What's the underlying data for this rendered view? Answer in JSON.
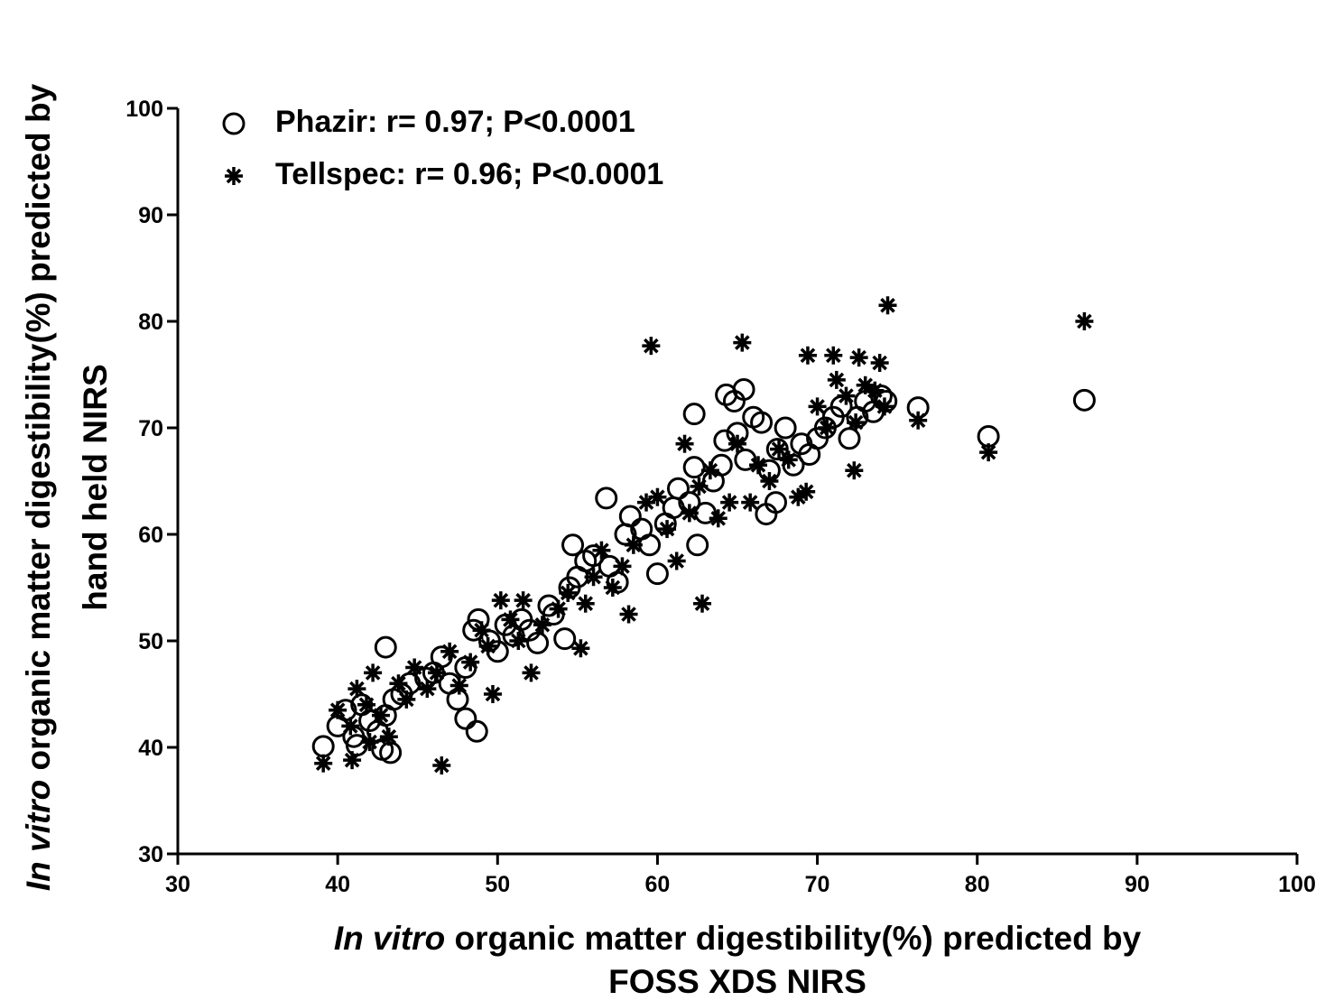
{
  "chart_data": {
    "type": "scatter",
    "x_label": {
      "italic": "In vitro",
      "rest": "organic matter digestibility(%) predicted by",
      "line2": "FOSS XDS NIRS"
    },
    "y_label": {
      "italic": "In vitro",
      "rest": "organic matter digestibility(%) predicted by",
      "line2": "hand held NIRS"
    },
    "xlim": [
      30,
      100
    ],
    "ylim": [
      30,
      100
    ],
    "xticks": [
      30,
      40,
      50,
      60,
      70,
      80,
      90,
      100
    ],
    "yticks": [
      30,
      40,
      50,
      60,
      70,
      80,
      90,
      100
    ],
    "legend": "upper left",
    "series": [
      {
        "name": "Phazir: r= 0.97; P<0.0001",
        "marker": "circle",
        "color": "#000000",
        "x": [
          86.7,
          80.7,
          76.3,
          43,
          56.8,
          62.3,
          64.3,
          65.4,
          39.1,
          48.7,
          48,
          60,
          66.8,
          67.4,
          54.7,
          53.2,
          40,
          40.5,
          41,
          41.5,
          42,
          42.5,
          43,
          43.5,
          44,
          41.2,
          42.8,
          43.3,
          44.5,
          45.5,
          46,
          46.5,
          47,
          47.5,
          48,
          48.5,
          48.8,
          49.5,
          50,
          50.5,
          51,
          51.5,
          52,
          52.5,
          53.5,
          54.2,
          54.5,
          55,
          55.5,
          56,
          57,
          57.5,
          58,
          58.3,
          59,
          59.5,
          60.5,
          61,
          61.3,
          62,
          62.3,
          62.5,
          63,
          63.5,
          64,
          64.2,
          64.8,
          65,
          65.5,
          66,
          66.5,
          67,
          67.5,
          68,
          68.5,
          69,
          69.5,
          70,
          70.5,
          71,
          71.5,
          72,
          72.5,
          73,
          73.5,
          74,
          74.3
        ],
        "y": [
          72.6,
          69.2,
          71.9,
          49.4,
          63.4,
          71.3,
          73.1,
          73.6,
          40.1,
          41.5,
          42.7,
          56.3,
          61.9,
          63,
          59,
          53.3,
          42,
          43.5,
          41,
          44,
          42.5,
          41.5,
          43,
          44.5,
          45,
          40.2,
          39.8,
          39.5,
          46,
          46.5,
          47,
          48.5,
          46,
          44.5,
          47.5,
          51,
          52,
          50,
          49,
          51.5,
          50.5,
          52,
          51,
          49.8,
          52.5,
          50.2,
          55,
          56,
          57.5,
          58,
          57,
          55.5,
          60,
          61.7,
          60.5,
          59,
          61,
          62.5,
          64.3,
          63,
          66.3,
          59,
          62,
          65,
          66.5,
          68.8,
          72.5,
          69.5,
          67,
          71,
          70.5,
          66,
          68,
          70,
          66.5,
          68.5,
          67.5,
          69,
          70,
          71,
          72,
          69,
          71,
          72.5,
          71.5,
          73,
          72.5
        ]
      },
      {
        "name": "Tellspec: r= 0.96; P<0.0001",
        "marker": "asterisk",
        "color": "#000000",
        "x": [
          86.7,
          74.4,
          65.3,
          59.6,
          80.7,
          76.3,
          62.8,
          46.5,
          39.1,
          55.2,
          58.2,
          49.7,
          52.1,
          69.4,
          71,
          72.6,
          73.9,
          72.3,
          61.7,
          40,
          40.8,
          41.2,
          41.8,
          42.2,
          42.7,
          43.2,
          43.8,
          44.3,
          40.9,
          42,
          44.8,
          45.6,
          46.2,
          47,
          47.6,
          48.3,
          49,
          49.4,
          50.2,
          50.8,
          51.3,
          51.6,
          52.8,
          53.8,
          54.4,
          55.5,
          56,
          56.5,
          57.2,
          57.8,
          58.5,
          59.3,
          60,
          60.6,
          61.2,
          62,
          62.6,
          63.3,
          63.8,
          64.5,
          65,
          65.8,
          66.3,
          67,
          67.6,
          68.2,
          68.8,
          69.3,
          70,
          70.6,
          71.2,
          71.8,
          72.4,
          73,
          73.6,
          74.2
        ],
        "y": [
          80,
          81.5,
          78,
          77.7,
          67.7,
          70.7,
          53.5,
          38.3,
          38.5,
          49.3,
          52.5,
          45,
          47,
          76.8,
          76.8,
          76.6,
          76.1,
          66,
          68.5,
          43.5,
          42,
          45.5,
          44,
          47,
          43,
          41,
          46,
          44.5,
          38.8,
          40.5,
          47.5,
          45.5,
          47,
          49,
          45.8,
          48,
          51,
          49.5,
          53.8,
          52,
          50,
          53.8,
          51.5,
          53,
          54.5,
          53.5,
          56,
          58.5,
          55,
          57,
          59,
          63,
          63.5,
          60.5,
          57.5,
          62,
          64.5,
          66,
          61.5,
          63,
          68.5,
          63,
          66.5,
          65,
          68,
          67,
          63.5,
          64,
          72,
          70,
          74.5,
          73,
          70.5,
          74,
          73.5,
          72
        ]
      }
    ]
  }
}
